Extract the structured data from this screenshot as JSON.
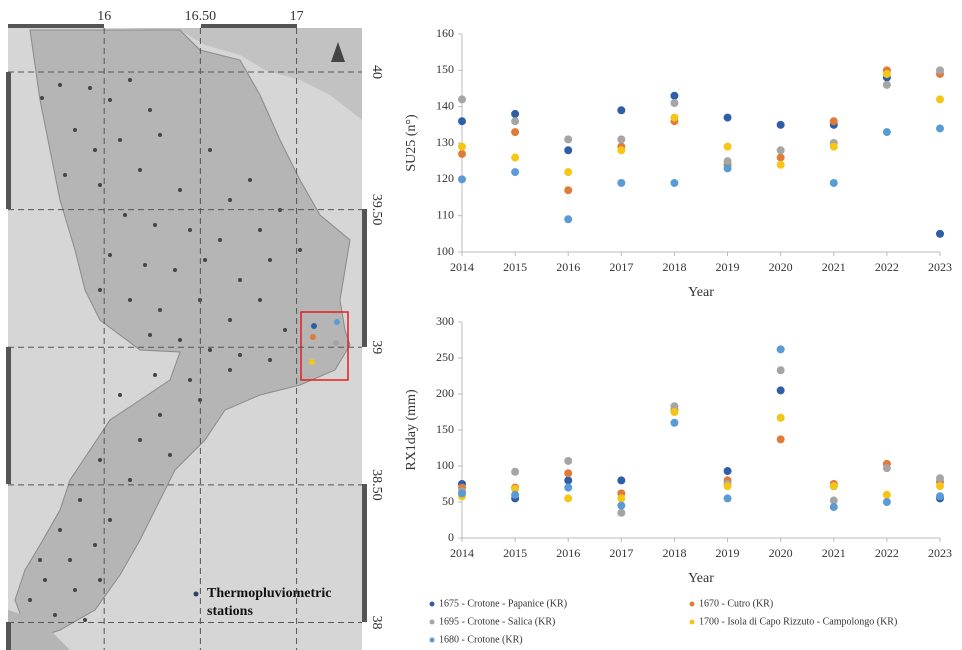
{
  "map": {
    "xticks": [
      16,
      {
        "value": 16.5,
        "label": "16.50"
      },
      17
    ],
    "yticks": [
      40,
      {
        "value": 39.5,
        "label": "39.50"
      },
      39,
      {
        "value": 38.5,
        "label": "38.50"
      },
      38
    ],
    "xlim": [
      15.5,
      17.34
    ],
    "ylim": [
      37.9,
      40.16
    ],
    "legend": "Thermopluviometric stations"
  },
  "chart_data": [
    {
      "type": "scatter",
      "y_label": "SU25 (n°)",
      "x_label": "Year",
      "x": [
        2014,
        2015,
        2016,
        2017,
        2018,
        2019,
        2020,
        2021,
        2022,
        2023
      ],
      "xlim": [
        2014,
        2023
      ],
      "xticks": [
        2014,
        2015,
        2016,
        2017,
        2018,
        2019,
        2020,
        2021,
        2022,
        2023
      ],
      "ylim": [
        100,
        160
      ],
      "yticks": [
        100,
        110,
        120,
        130,
        140,
        150,
        160
      ],
      "grid": false,
      "series": [
        {
          "name": "1675 - Crotone - Papanice (KR)",
          "color": "#2f5ea9",
          "values": [
            136,
            138,
            128,
            139,
            143,
            137,
            135,
            135,
            148,
            105
          ]
        },
        {
          "name": "1670 - Cutro (KR)",
          "color": "#e07b39",
          "values": [
            127,
            133,
            117,
            129,
            136,
            124,
            126,
            136,
            150,
            149
          ]
        },
        {
          "name": "1695 - Crotone - Salica (KR)",
          "color": "#a5a5a5",
          "values": [
            142,
            136,
            131,
            131,
            141,
            125,
            128,
            130,
            146,
            150
          ]
        },
        {
          "name": "1700 - Isola di Capo Rizzuto - Campolongo (KR)",
          "color": "#f5c518",
          "values": [
            129,
            126,
            122,
            128,
            137,
            129,
            124,
            129,
            149,
            142
          ]
        },
        {
          "name": "1680 - Crotone (KR)",
          "color": "#5b9bd5",
          "values": [
            120,
            122,
            109,
            119,
            119,
            123,
            null,
            119,
            133,
            134
          ]
        }
      ]
    },
    {
      "type": "scatter",
      "y_label": "RX1day (mm)",
      "x_label": "Year",
      "x": [
        2014,
        2015,
        2016,
        2017,
        2018,
        2019,
        2020,
        2021,
        2022,
        2023
      ],
      "xlim": [
        2014,
        2023
      ],
      "xticks": [
        2014,
        2015,
        2016,
        2017,
        2018,
        2019,
        2020,
        2021,
        2022,
        2023
      ],
      "ylim": [
        0,
        300
      ],
      "yticks": [
        0,
        50,
        100,
        150,
        200,
        250,
        300
      ],
      "grid": false,
      "series": [
        {
          "name": "1675 - Crotone - Papanice (KR)",
          "color": "#2f5ea9",
          "values": [
            75,
            55,
            80,
            80,
            null,
            93,
            205,
            72,
            null,
            55
          ]
        },
        {
          "name": "1670 - Cutro (KR)",
          "color": "#e07b39",
          "values": [
            70,
            70,
            90,
            62,
            178,
            80,
            137,
            75,
            103,
            78
          ]
        },
        {
          "name": "1695 - Crotone - Salica (KR)",
          "color": "#a5a5a5",
          "values": [
            65,
            92,
            107,
            35,
            183,
            75,
            233,
            52,
            97,
            83
          ]
        },
        {
          "name": "1700 - Isola di Capo Rizzuto - Campolongo (KR)",
          "color": "#f5c518",
          "values": [
            58,
            68,
            55,
            55,
            175,
            72,
            167,
            72,
            60,
            72
          ]
        },
        {
          "name": "1680 - Crotone (KR)",
          "color": "#5b9bd5",
          "values": [
            62,
            60,
            70,
            45,
            160,
            55,
            262,
            43,
            50,
            58
          ]
        }
      ]
    }
  ]
}
